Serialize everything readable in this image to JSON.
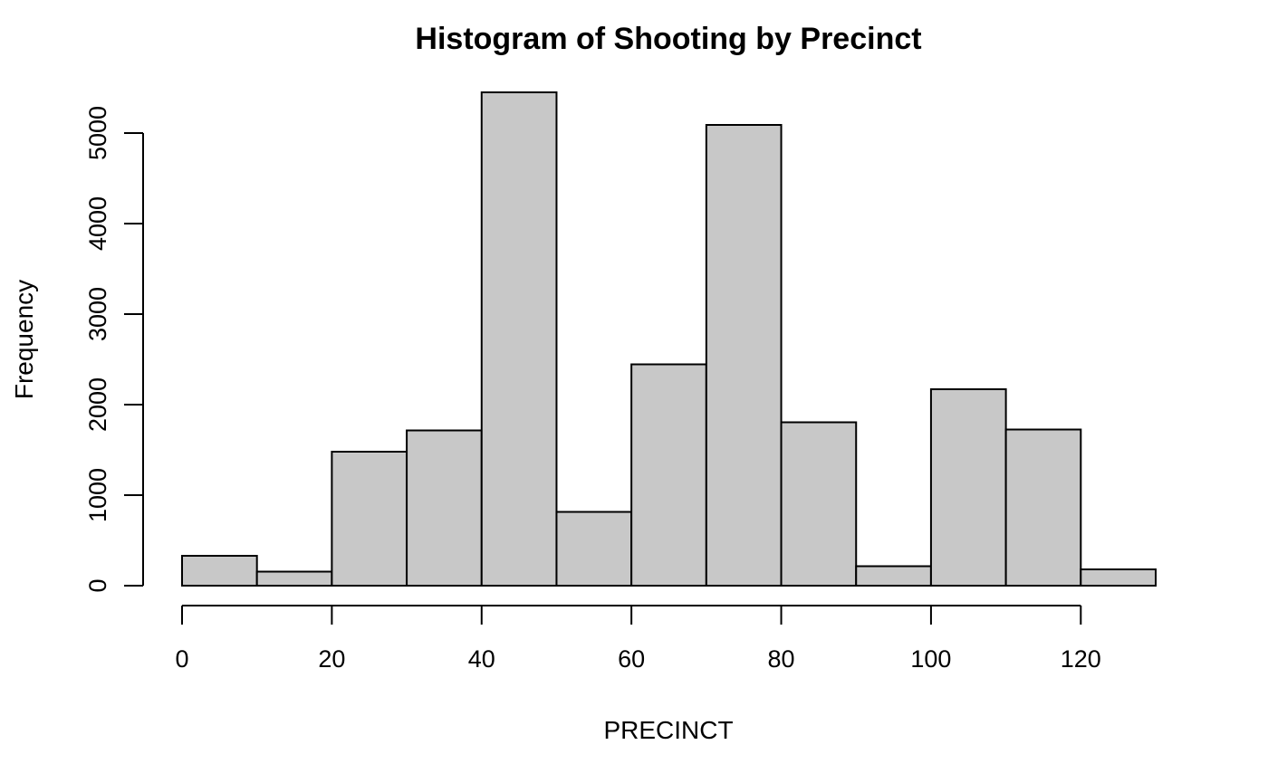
{
  "chart_data": {
    "type": "bar",
    "title": "Histogram of Shooting by Precinct",
    "xlabel": "PRECINCT",
    "ylabel": "Frequency",
    "bin_edges": [
      0,
      10,
      20,
      30,
      40,
      50,
      60,
      70,
      80,
      90,
      100,
      110,
      120,
      130
    ],
    "values": [
      330,
      155,
      1480,
      1715,
      5450,
      815,
      2445,
      5090,
      1805,
      215,
      2170,
      1725,
      180
    ],
    "xlim": [
      0,
      130
    ],
    "ylim": [
      0,
      5450
    ],
    "x_ticks": [
      0,
      20,
      40,
      60,
      80,
      100,
      120
    ],
    "y_ticks": [
      0,
      1000,
      2000,
      3000,
      4000,
      5000
    ],
    "x_tick_labels": [
      "0",
      "20",
      "40",
      "60",
      "80",
      "100",
      "120"
    ],
    "y_tick_labels": [
      "0",
      "1000",
      "2000",
      "3000",
      "4000",
      "5000"
    ],
    "grid": false,
    "legend": "none",
    "bar_color": "#c8c8c8",
    "edge_color": "#000000"
  }
}
